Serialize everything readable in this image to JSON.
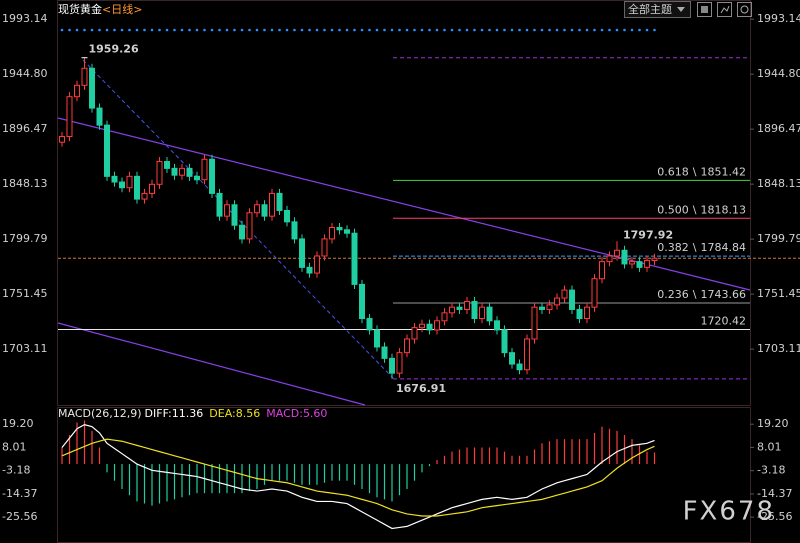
{
  "chart_data": {
    "type": "candlestick",
    "title": "现货黄金",
    "period": "<日线>",
    "up_color": "#ff3b3b",
    "down_color": "#1fcfa2",
    "open": [
      1885,
      1890,
      1925,
      1935,
      1950,
      1915,
      1900,
      1855,
      1850,
      1845,
      1855,
      1835,
      1840,
      1848,
      1868,
      1862,
      1856,
      1862,
      1855,
      1852,
      1870,
      1840,
      1820,
      1830,
      1812,
      1800,
      1823,
      1830,
      1820,
      1840,
      1825,
      1815,
      1800,
      1775,
      1770,
      1785,
      1800,
      1810,
      1808,
      1805,
      1760,
      1730,
      1720,
      1705,
      1695,
      1682,
      1700,
      1712,
      1722,
      1725,
      1720,
      1728,
      1735,
      1740,
      1738,
      1745,
      1730,
      1740,
      1728,
      1720,
      1700,
      1690,
      1685,
      1712,
      1740,
      1738,
      1742,
      1748,
      1755,
      1738,
      1730,
      1740,
      1765,
      1780,
      1785,
      1790,
      1778,
      1780,
      1775,
      1781
    ],
    "high": [
      1894,
      1929,
      1939,
      1959.26,
      1954,
      1919,
      1904,
      1859,
      1854,
      1859,
      1859,
      1844,
      1852,
      1872,
      1872,
      1866,
      1866,
      1866,
      1859,
      1874,
      1874,
      1844,
      1834,
      1834,
      1816,
      1827,
      1834,
      1834,
      1844,
      1844,
      1829,
      1819,
      1804,
      1779,
      1789,
      1804,
      1814,
      1814,
      1812,
      1809,
      1764,
      1734,
      1724,
      1709,
      1699,
      1704,
      1716,
      1726,
      1729,
      1729,
      1732,
      1739,
      1744,
      1744,
      1749,
      1749,
      1744,
      1744,
      1732,
      1724,
      1704,
      1694,
      1716,
      1744,
      1744,
      1746,
      1752,
      1759,
      1759,
      1742,
      1744,
      1769,
      1784,
      1789,
      1797.92,
      1794,
      1784,
      1784,
      1785,
      1787
    ],
    "low": [
      1881,
      1886,
      1921,
      1931,
      1911,
      1896,
      1851,
      1846,
      1841,
      1841,
      1831,
      1831,
      1836,
      1844,
      1858,
      1852,
      1852,
      1851,
      1848,
      1848,
      1836,
      1816,
      1816,
      1808,
      1796,
      1796,
      1819,
      1816,
      1816,
      1821,
      1811,
      1796,
      1771,
      1766,
      1766,
      1781,
      1796,
      1804,
      1801,
      1756,
      1726,
      1716,
      1701,
      1691,
      1676.91,
      1678,
      1696,
      1708,
      1718,
      1716,
      1716,
      1724,
      1731,
      1734,
      1734,
      1726,
      1726,
      1724,
      1716,
      1696,
      1686,
      1681,
      1681,
      1708,
      1734,
      1734,
      1738,
      1744,
      1734,
      1726,
      1726,
      1736,
      1761,
      1776,
      1781,
      1774,
      1774,
      1771,
      1771,
      1777
    ],
    "close": [
      1890,
      1925,
      1935,
      1950,
      1915,
      1900,
      1855,
      1850,
      1845,
      1855,
      1835,
      1840,
      1848,
      1868,
      1862,
      1856,
      1862,
      1855,
      1852,
      1870,
      1840,
      1820,
      1830,
      1812,
      1800,
      1823,
      1830,
      1820,
      1840,
      1825,
      1815,
      1800,
      1775,
      1770,
      1785,
      1800,
      1810,
      1808,
      1805,
      1760,
      1730,
      1720,
      1705,
      1695,
      1682,
      1700,
      1712,
      1722,
      1725,
      1720,
      1728,
      1735,
      1740,
      1738,
      1745,
      1730,
      1740,
      1728,
      1720,
      1700,
      1690,
      1685,
      1712,
      1740,
      1738,
      1742,
      1748,
      1755,
      1738,
      1730,
      1740,
      1765,
      1780,
      1785,
      1790,
      1778,
      1780,
      1775,
      1781,
      1783
    ],
    "ylim": [
      1654,
      2010
    ],
    "yticks": [
      1993.14,
      {
        "value": 1944.8,
        "label": "1944.80"
      },
      1896.47,
      1848.13,
      1799.79,
      1751.45,
      1703.11
    ],
    "price_line": 1783,
    "fib": {
      "separator": "\\",
      "levels": [
        {
          "ratio": 0.618,
          "value": 1851.42,
          "color": "#3fd43f"
        },
        {
          "ratio": {
            "value": 0.5,
            "label": "0.500"
          },
          "value": 1818.13,
          "color": "#ff3d6e"
        },
        {
          "ratio": 0.382,
          "value": 1784.84,
          "color": "#3a9bff"
        },
        {
          "ratio": 0.236,
          "value": 1743.66,
          "color": "#9a9a9a"
        }
      ],
      "support": {
        "value": 1720.42,
        "color": "#e8e8e8"
      }
    },
    "macd": {
      "title": "MACD(26,12,9)",
      "ylim": [
        -38,
        27
      ],
      "yticks": [
        {
          "value": 19.2,
          "label": "19.20"
        },
        8.01,
        -3.18,
        -14.37,
        -25.56
      ],
      "diff": {
        "name": "DIFF:",
        "color": "#ffffff",
        "values": [
          8,
          12.5,
          17,
          19,
          18,
          15,
          10,
          7.5,
          5,
          2.5,
          0,
          -1.5,
          -3,
          -3.5,
          -4,
          -4.5,
          -5,
          -5.5,
          -6,
          -7,
          -8,
          -9,
          -10,
          -11,
          -12,
          -12.5,
          -13,
          -12.5,
          -12,
          -12.5,
          -13,
          -14.5,
          -16,
          -17,
          -18,
          -18,
          -18,
          -18.5,
          -19,
          -21,
          -23,
          -25,
          -27,
          -29,
          -31,
          -30.5,
          -30,
          -28.5,
          -27,
          -25.5,
          -24,
          -22.5,
          -21,
          -20,
          -19,
          -18,
          -17,
          -16.5,
          -16,
          -16.5,
          -17,
          -16.5,
          -16,
          -14,
          -12,
          -10.5,
          -9,
          -8,
          -7,
          -6,
          -5,
          -2,
          1,
          3.5,
          6,
          7.5,
          9,
          9.5,
          10,
          11.36
        ]
      },
      "dea": {
        "name": "DEA:",
        "color": "#f0e020",
        "values": [
          4,
          5.5,
          7,
          8.5,
          10,
          11,
          12,
          11.5,
          11,
          10,
          9,
          8,
          7,
          6,
          5,
          4,
          3,
          2,
          1,
          0,
          -1,
          -2,
          -3,
          -4,
          -5,
          -6,
          -7,
          -7.5,
          -8,
          -8.5,
          -9,
          -10,
          -11,
          -12,
          -13,
          -13.5,
          -14,
          -14.5,
          -15,
          -16,
          -17,
          -18,
          -19,
          -20.5,
          -22,
          -23,
          -24,
          -24.5,
          -25,
          -25,
          -25,
          -24.5,
          -24,
          -23.5,
          -23,
          -22,
          -21,
          -20.5,
          -20,
          -19.5,
          -19,
          -18.5,
          -18,
          -17.5,
          -17,
          -16,
          -15,
          -14,
          -13,
          -12,
          -11,
          -9.5,
          -8,
          -5,
          -2,
          0.5,
          3,
          5,
          7,
          8.56
        ]
      },
      "hist": {
        "name": "MACD:",
        "color": "#e040e0",
        "up_color": "#ff3b3b",
        "down_color": "#1fcfa2",
        "values": [
          8,
          14,
          20,
          21,
          16,
          8,
          -4,
          -8,
          -12,
          -15,
          -18,
          -19,
          -20,
          -19,
          -18,
          -17,
          -16,
          -15,
          -14,
          -14,
          -14,
          -14,
          -14,
          -14,
          -14,
          -13,
          -12,
          -10,
          -8,
          -8,
          -8,
          -9,
          -10,
          -10,
          -10,
          -9,
          -8,
          -8,
          -8,
          -10,
          -12,
          -14,
          -16,
          -17,
          -18,
          -15,
          -12,
          -8,
          -4,
          -1,
          2,
          4,
          6,
          7,
          8,
          8,
          8,
          8,
          8,
          6,
          4,
          4,
          4,
          7,
          10,
          11,
          12,
          12,
          12,
          12,
          12,
          15,
          18,
          17,
          16,
          14,
          12,
          9,
          6,
          5.6
        ],
        "value_label": "5.60"
      }
    }
  },
  "ui": {
    "theme_button": "全部主题",
    "watermark": "FX678"
  }
}
